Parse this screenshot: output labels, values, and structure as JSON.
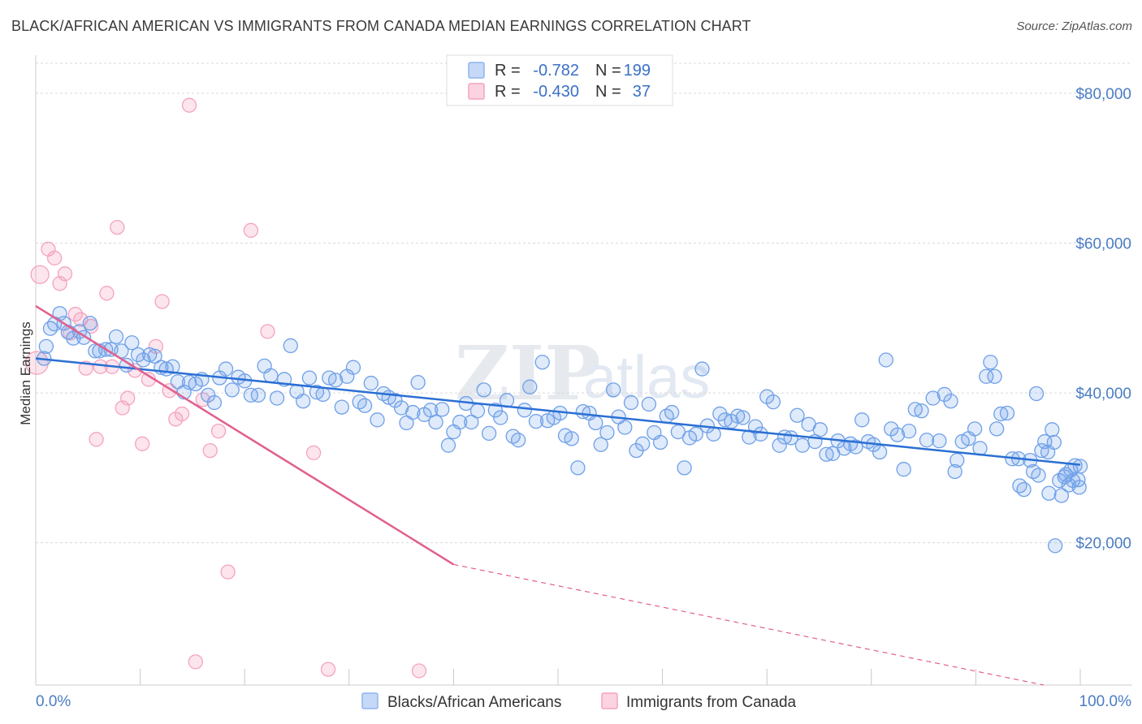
{
  "header": {
    "title": "BLACK/AFRICAN AMERICAN VS IMMIGRANTS FROM CANADA MEDIAN EARNINGS CORRELATION CHART",
    "source": "Source: ZipAtlas.com"
  },
  "watermark": {
    "part1": "ZIP",
    "part2": "atlas"
  },
  "legend": {
    "r_label": "R =",
    "n_label": "N =",
    "series": [
      {
        "r": "-0.782",
        "n": "199",
        "color": "#8fb4ef"
      },
      {
        "r": "-0.430",
        "n": "37",
        "color": "#f4a3bf"
      }
    ]
  },
  "chart_data": {
    "type": "scatter",
    "title": "BLACK/AFRICAN AMERICAN VS IMMIGRANTS FROM CANADA MEDIAN EARNINGS CORRELATION CHART",
    "xlabel": "",
    "ylabel": "Median Earnings",
    "xlim": [
      0,
      100
    ],
    "ylim": [
      1000,
      84000
    ],
    "x_tick_labels": [
      "0.0%",
      "100.0%"
    ],
    "y_ticks": [
      20000,
      40000,
      60000,
      80000
    ],
    "y_tick_labels": [
      "$20,000",
      "$40,000",
      "$60,000",
      "$80,000"
    ],
    "grid": true,
    "legend_position": "top-center",
    "series": [
      {
        "name": "Blacks/African Americans",
        "color": "#6fa0e8",
        "line_color": "#2a6fd4",
        "trend": {
          "x": [
            0,
            100
          ],
          "y": [
            44600,
            30400
          ]
        },
        "points": [
          [
            0.8,
            44600
          ],
          [
            1.0,
            46200
          ],
          [
            1.4,
            48600
          ],
          [
            1.8,
            49200
          ],
          [
            2.3,
            50600
          ],
          [
            2.7,
            49300
          ],
          [
            3.1,
            48100
          ],
          [
            3.6,
            47300
          ],
          [
            4.2,
            48200
          ],
          [
            4.6,
            47400
          ],
          [
            5.2,
            49300
          ],
          [
            5.7,
            45600
          ],
          [
            6.1,
            45600
          ],
          [
            6.7,
            45800
          ],
          [
            7.2,
            45800
          ],
          [
            7.7,
            47500
          ],
          [
            8.2,
            45600
          ],
          [
            8.7,
            43700
          ],
          [
            9.2,
            46700
          ],
          [
            9.8,
            45100
          ],
          [
            10.3,
            44400
          ],
          [
            10.9,
            45100
          ],
          [
            11.4,
            44900
          ],
          [
            12.0,
            43400
          ],
          [
            12.5,
            43200
          ],
          [
            13.1,
            43500
          ],
          [
            13.6,
            41500
          ],
          [
            14.2,
            40100
          ],
          [
            14.7,
            41400
          ],
          [
            15.3,
            41200
          ],
          [
            15.9,
            41800
          ],
          [
            16.5,
            39700
          ],
          [
            17.1,
            38700
          ],
          [
            17.6,
            42000
          ],
          [
            18.2,
            43200
          ],
          [
            18.8,
            40400
          ],
          [
            19.4,
            42100
          ],
          [
            20.0,
            41600
          ],
          [
            20.6,
            39700
          ],
          [
            21.3,
            39700
          ],
          [
            21.9,
            43600
          ],
          [
            22.5,
            42300
          ],
          [
            23.1,
            39300
          ],
          [
            23.8,
            41800
          ],
          [
            24.4,
            46300
          ],
          [
            25.0,
            40200
          ],
          [
            25.6,
            38900
          ],
          [
            26.2,
            42000
          ],
          [
            26.9,
            40100
          ],
          [
            27.5,
            39800
          ],
          [
            28.1,
            42000
          ],
          [
            28.7,
            41700
          ],
          [
            29.3,
            38100
          ],
          [
            29.8,
            42200
          ],
          [
            30.4,
            43400
          ],
          [
            31.0,
            38800
          ],
          [
            31.5,
            38300
          ],
          [
            32.1,
            41300
          ],
          [
            32.7,
            36400
          ],
          [
            33.3,
            39900
          ],
          [
            33.8,
            39400
          ],
          [
            34.4,
            39000
          ],
          [
            35.0,
            38000
          ],
          [
            35.5,
            36000
          ],
          [
            36.1,
            37400
          ],
          [
            36.6,
            41400
          ],
          [
            37.2,
            37100
          ],
          [
            37.8,
            37700
          ],
          [
            38.3,
            36100
          ],
          [
            38.9,
            37800
          ],
          [
            39.5,
            33000
          ],
          [
            40.0,
            34800
          ],
          [
            40.6,
            36100
          ],
          [
            41.2,
            38600
          ],
          [
            41.7,
            36100
          ],
          [
            42.3,
            37600
          ],
          [
            42.9,
            40400
          ],
          [
            43.4,
            34600
          ],
          [
            44.0,
            37700
          ],
          [
            44.5,
            36700
          ],
          [
            45.1,
            39000
          ],
          [
            45.7,
            34200
          ],
          [
            46.2,
            33700
          ],
          [
            46.8,
            37700
          ],
          [
            47.3,
            40800
          ],
          [
            47.9,
            36200
          ],
          [
            48.5,
            44100
          ],
          [
            49.0,
            36300
          ],
          [
            49.6,
            36700
          ],
          [
            50.2,
            37300
          ],
          [
            50.7,
            34300
          ],
          [
            51.3,
            33900
          ],
          [
            51.9,
            30000
          ],
          [
            52.4,
            37500
          ],
          [
            53.0,
            37300
          ],
          [
            53.6,
            36000
          ],
          [
            54.1,
            33100
          ],
          [
            54.7,
            34700
          ],
          [
            55.3,
            40400
          ],
          [
            55.8,
            36800
          ],
          [
            56.4,
            35400
          ],
          [
            57.0,
            38700
          ],
          [
            57.5,
            32300
          ],
          [
            58.1,
            33200
          ],
          [
            58.7,
            38500
          ],
          [
            59.2,
            34700
          ],
          [
            59.8,
            33400
          ],
          [
            60.4,
            36900
          ],
          [
            60.9,
            37400
          ],
          [
            61.5,
            34800
          ],
          [
            62.1,
            30000
          ],
          [
            62.6,
            34000
          ],
          [
            63.2,
            34500
          ],
          [
            63.8,
            43200
          ],
          [
            64.3,
            35600
          ],
          [
            64.9,
            34500
          ],
          [
            65.5,
            37200
          ],
          [
            66.0,
            36400
          ],
          [
            66.6,
            36200
          ],
          [
            67.2,
            36900
          ],
          [
            67.7,
            36700
          ],
          [
            68.3,
            34100
          ],
          [
            68.9,
            35500
          ],
          [
            69.4,
            34500
          ],
          [
            70.0,
            39500
          ],
          [
            70.6,
            38800
          ],
          [
            71.2,
            33000
          ],
          [
            71.7,
            34100
          ],
          [
            72.3,
            34000
          ],
          [
            72.9,
            37000
          ],
          [
            73.4,
            33000
          ],
          [
            74.0,
            35800
          ],
          [
            74.6,
            33500
          ],
          [
            75.1,
            35100
          ],
          [
            75.7,
            31800
          ],
          [
            76.3,
            31900
          ],
          [
            76.8,
            33600
          ],
          [
            77.4,
            32600
          ],
          [
            78.0,
            33200
          ],
          [
            78.5,
            32800
          ],
          [
            79.1,
            36400
          ],
          [
            79.7,
            33500
          ],
          [
            80.2,
            33100
          ],
          [
            80.8,
            32100
          ],
          [
            81.4,
            44400
          ],
          [
            81.9,
            35200
          ],
          [
            82.5,
            34400
          ],
          [
            83.1,
            29800
          ],
          [
            83.6,
            34900
          ],
          [
            84.2,
            37800
          ],
          [
            84.8,
            37600
          ],
          [
            85.3,
            33700
          ],
          [
            85.9,
            39300
          ],
          [
            86.5,
            33600
          ],
          [
            87.0,
            39800
          ],
          [
            87.6,
            38900
          ],
          [
            88.2,
            31000
          ],
          [
            88.7,
            33500
          ],
          [
            89.3,
            33900
          ],
          [
            89.9,
            35200
          ],
          [
            90.4,
            32600
          ],
          [
            91.0,
            42200
          ],
          [
            91.4,
            44100
          ],
          [
            91.8,
            42200
          ],
          [
            92.4,
            37200
          ],
          [
            93.0,
            37300
          ],
          [
            93.5,
            31200
          ],
          [
            94.1,
            31200
          ],
          [
            94.6,
            27100
          ],
          [
            95.2,
            31000
          ],
          [
            95.8,
            39900
          ],
          [
            96.3,
            32300
          ],
          [
            96.9,
            32100
          ],
          [
            97.5,
            33400
          ],
          [
            98.0,
            28300
          ],
          [
            98.6,
            29100
          ],
          [
            99.1,
            29700
          ],
          [
            99.5,
            30300
          ],
          [
            99.8,
            28400
          ],
          [
            96.0,
            29000
          ],
          [
            97.0,
            26600
          ],
          [
            98.2,
            26300
          ],
          [
            98.9,
            27700
          ],
          [
            99.3,
            28300
          ],
          [
            100.0,
            30200
          ],
          [
            99.9,
            27400
          ],
          [
            97.3,
            35100
          ],
          [
            94.2,
            27600
          ],
          [
            95.5,
            29500
          ],
          [
            96.6,
            33500
          ],
          [
            97.6,
            19600
          ],
          [
            98.5,
            28800
          ],
          [
            92.0,
            35200
          ],
          [
            88.0,
            29500
          ]
        ]
      },
      {
        "name": "Immigrants from Canada",
        "color": "#f4a3bf",
        "line_color": "#e0608f",
        "trend": {
          "x": [
            0,
            40
          ],
          "y": [
            51600,
            17100
          ]
        },
        "trend_dashed_extension": {
          "x": [
            40,
            100
          ],
          "y": [
            17100,
            0
          ]
        },
        "points": [
          [
            0.4,
            55800
          ],
          [
            1.2,
            59200
          ],
          [
            1.8,
            58000
          ],
          [
            2.3,
            54600
          ],
          [
            2.8,
            55900
          ],
          [
            3.3,
            48000
          ],
          [
            3.8,
            50500
          ],
          [
            4.3,
            49800
          ],
          [
            4.8,
            43300
          ],
          [
            5.3,
            48900
          ],
          [
            5.8,
            33800
          ],
          [
            6.2,
            43500
          ],
          [
            6.8,
            53300
          ],
          [
            7.3,
            43500
          ],
          [
            7.8,
            62100
          ],
          [
            8.3,
            38000
          ],
          [
            8.8,
            39300
          ],
          [
            9.5,
            43000
          ],
          [
            10.2,
            33200
          ],
          [
            10.8,
            41800
          ],
          [
            11.5,
            46200
          ],
          [
            12.1,
            52200
          ],
          [
            12.8,
            40300
          ],
          [
            13.4,
            36500
          ],
          [
            14.0,
            37200
          ],
          [
            14.7,
            78400
          ],
          [
            15.3,
            4100
          ],
          [
            16.0,
            39100
          ],
          [
            16.7,
            32300
          ],
          [
            17.5,
            34900
          ],
          [
            18.4,
            16100
          ],
          [
            20.6,
            61700
          ],
          [
            22.2,
            48200
          ],
          [
            26.6,
            32000
          ],
          [
            28.0,
            3100
          ],
          [
            36.7,
            2900
          ],
          [
            0.1,
            44000
          ]
        ]
      }
    ]
  },
  "bottom_legend": {
    "items": [
      {
        "label": "Blacks/African Americans"
      },
      {
        "label": "Immigrants from Canada"
      }
    ]
  }
}
